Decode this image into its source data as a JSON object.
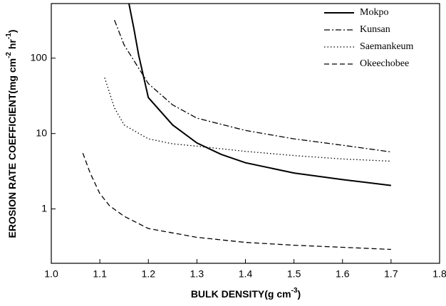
{
  "chart_data": {
    "type": "line",
    "xlabel_parts": [
      {
        "text": "BULK DENSITY(g cm"
      },
      {
        "text": "-3",
        "sup": true
      },
      {
        "text": ")"
      }
    ],
    "ylabel_parts": [
      {
        "text": "EROSION RATE COEFFICIENT(mg cm"
      },
      {
        "text": "-2",
        "sup": true
      },
      {
        "text": " hr"
      },
      {
        "text": "-1",
        "sup": true
      },
      {
        "text": ")"
      }
    ],
    "xlim": [
      1.0,
      1.8
    ],
    "xticks": [
      {
        "value": 1.0,
        "label": "1.0"
      },
      1.1,
      1.2,
      1.3,
      1.4,
      1.5,
      1.6,
      1.7,
      1.8
    ],
    "ylim": [
      0.19,
      530
    ],
    "yticks": [
      1,
      10,
      100
    ],
    "log_y": true,
    "legend": "upper right",
    "series": [
      {
        "name": "Mokpo",
        "color": "#000000",
        "dash": "solid",
        "x": [
          1.16,
          1.17,
          1.18,
          1.2,
          1.25,
          1.3,
          1.35,
          1.4,
          1.5,
          1.6,
          1.7
        ],
        "values": [
          530,
          250,
          110,
          30,
          13,
          7.5,
          5.3,
          4.1,
          3.0,
          2.45,
          2.05
        ]
      },
      {
        "name": "Kunsan",
        "color": "#000000",
        "dash": "dashdot",
        "x": [
          1.13,
          1.15,
          1.2,
          1.25,
          1.3,
          1.4,
          1.5,
          1.6,
          1.7
        ],
        "values": [
          320,
          150,
          46,
          24,
          16,
          11,
          8.5,
          7,
          5.7
        ]
      },
      {
        "name": "Saemankeum",
        "color": "#000000",
        "dash": "dotted",
        "x": [
          1.11,
          1.13,
          1.15,
          1.2,
          1.25,
          1.3,
          1.4,
          1.5,
          1.6,
          1.7
        ],
        "values": [
          55,
          22,
          13,
          8.5,
          7.3,
          6.8,
          5.8,
          5.1,
          4.6,
          4.3
        ]
      },
      {
        "name": "Okeechobee",
        "color": "#000000",
        "dash": "dashed",
        "x": [
          1.065,
          1.08,
          1.1,
          1.12,
          1.15,
          1.2,
          1.3,
          1.4,
          1.5,
          1.6,
          1.7
        ],
        "values": [
          5.5,
          3,
          1.6,
          1.1,
          0.8,
          0.55,
          0.42,
          0.36,
          0.33,
          0.31,
          0.29
        ]
      }
    ]
  }
}
